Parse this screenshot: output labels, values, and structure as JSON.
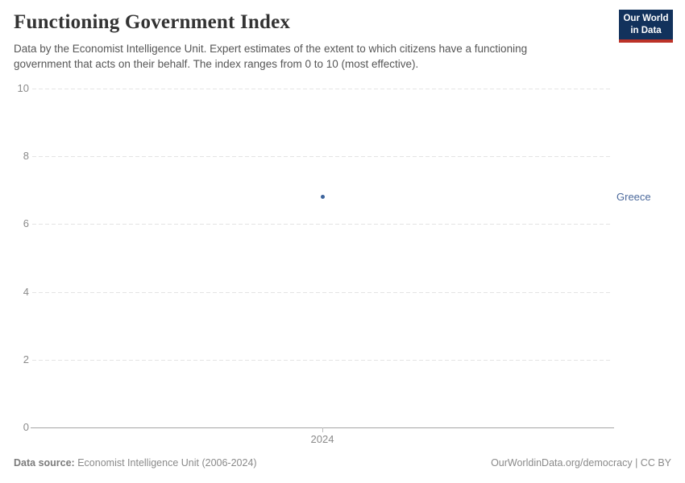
{
  "header": {
    "title": "Functioning Government Index",
    "subtitle": "Data by the Economist Intelligence Unit. Expert estimates of the extent to which citizens have a functioning government that acts on their behalf. The index ranges from 0 to 10 (most effective)."
  },
  "logo": {
    "line1": "Our World",
    "line2": "in Data",
    "bg_color": "#12325c",
    "strip_color": "#bc3228",
    "text_color": "#ffffff"
  },
  "chart_data": {
    "type": "scatter",
    "title": "Functioning Government Index",
    "xlabel": "",
    "ylabel": "",
    "ylim": [
      0,
      10
    ],
    "yticks": [
      0,
      2,
      4,
      6,
      8,
      10
    ],
    "xticks": [
      "2024"
    ],
    "grid": "horizontal-dashed",
    "legend_position": "right-of-last-point",
    "series": [
      {
        "name": "Greece",
        "x": [
          2024
        ],
        "values": [
          6.8
        ],
        "color": "#3d649c",
        "label_color": "#4c6a9c"
      }
    ]
  },
  "footer": {
    "data_source_label": "Data source:",
    "data_source": "Economist Intelligence Unit (2006-2024)",
    "attribution": "OurWorldinData.org/democracy | CC BY"
  },
  "colors": {
    "gridline": "#e4e4e4",
    "axis": "#a6a6a6",
    "tick_label": "#8a8a8a",
    "title_text": "#333333",
    "subtitle_text": "#565656"
  }
}
